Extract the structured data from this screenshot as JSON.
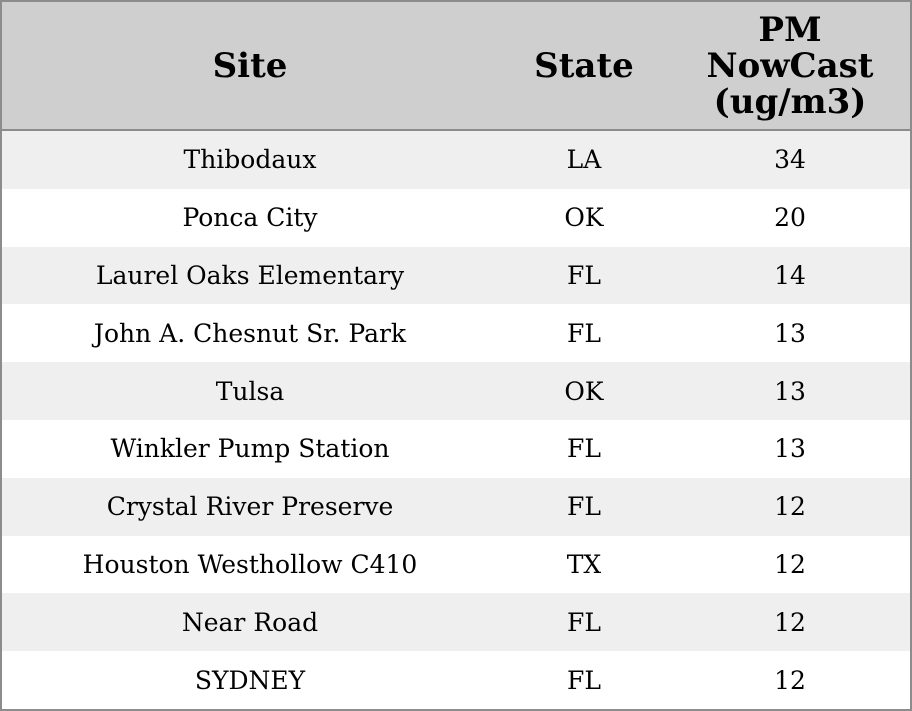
{
  "chart_data": {
    "type": "table",
    "columns": [
      "Site",
      "State",
      "PM NowCast (ug/m3)"
    ],
    "rows": [
      {
        "site": "Thibodaux",
        "state": "LA",
        "pm": "34"
      },
      {
        "site": "Ponca City",
        "state": "OK",
        "pm": "20"
      },
      {
        "site": "Laurel Oaks Elementary",
        "state": "FL",
        "pm": "14"
      },
      {
        "site": "John A. Chesnut Sr. Park",
        "state": "FL",
        "pm": "13"
      },
      {
        "site": "Tulsa",
        "state": "OK",
        "pm": "13"
      },
      {
        "site": "Winkler Pump Station",
        "state": "FL",
        "pm": "13"
      },
      {
        "site": "Crystal River Preserve",
        "state": "FL",
        "pm": "12"
      },
      {
        "site": "Houston Westhollow C410",
        "state": "TX",
        "pm": "12"
      },
      {
        "site": "Near Road",
        "state": "FL",
        "pm": "12"
      },
      {
        "site": "SYDNEY",
        "state": "FL",
        "pm": "12"
      }
    ]
  },
  "header": {
    "site": "Site",
    "state": "State",
    "pm_line1": "PM",
    "pm_line2": "NowCast",
    "pm_line3": "(ug/m3)"
  },
  "colors": {
    "header_bg": "#cfcfcf",
    "stripe_bg": "#efefef",
    "border": "#8c8c8c"
  }
}
